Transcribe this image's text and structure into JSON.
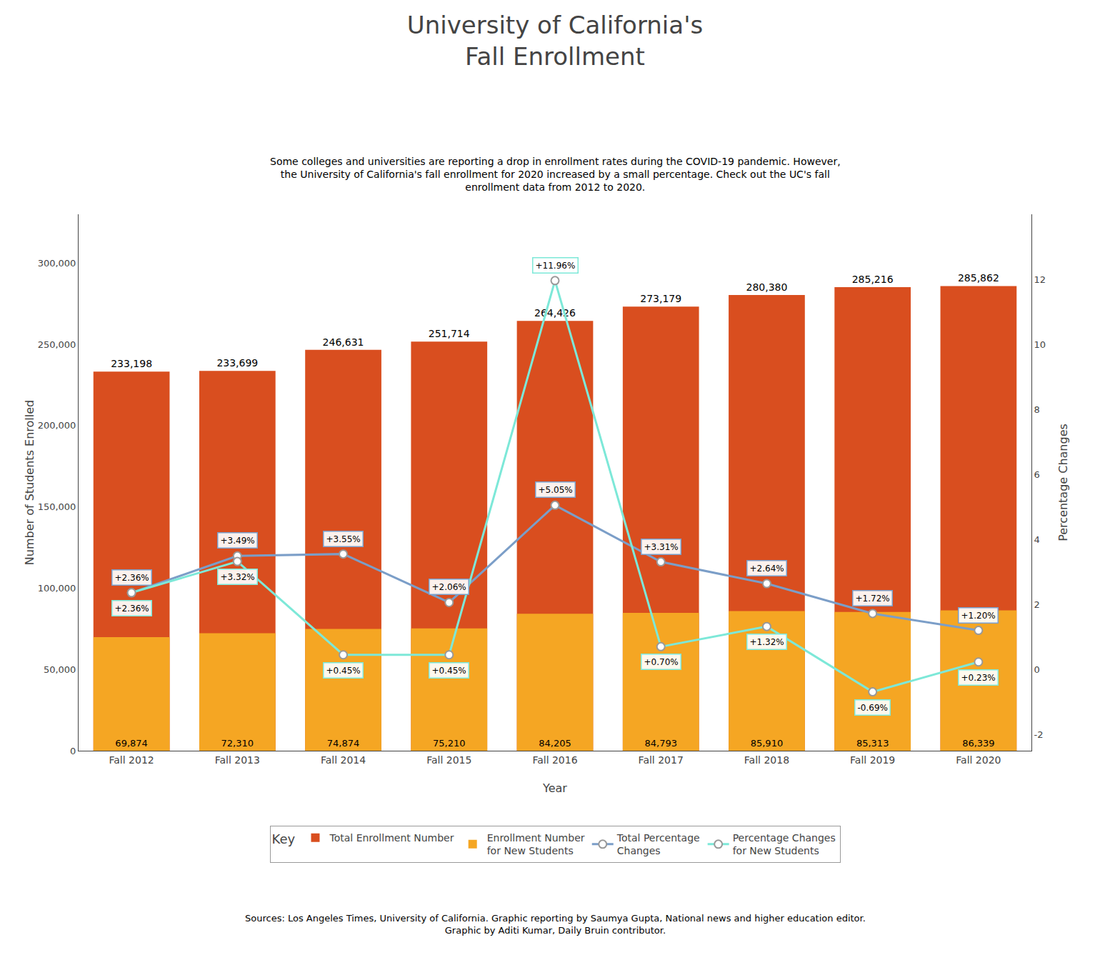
{
  "chart_data": {
    "type": "bar",
    "title": "University of California's\nFall Enrollment",
    "subtitle": "Some colleges and universities are reporting a drop in enrollment rates during the COVID-19 pandemic. However,\nthe University of California's fall enrollment for 2020 increased by a small percentage. Check out the UC's fall\nenrollment data from 2012 to 2020.",
    "source": "Sources: Los Angeles Times, University of California. Graphic reporting by Saumya Gupta, National news and higher education editor.\nGraphic by Aditi Kumar, Daily Bruin contributor.",
    "legend_title": "Key",
    "xlabel": "Year",
    "ylabel": "Number of Students Enrolled",
    "y2label": "Percentage Changes",
    "categories": [
      "Fall 2012",
      "Fall 2013",
      "Fall 2014",
      "Fall 2015",
      "Fall 2016",
      "Fall 2017",
      "Fall 2018",
      "Fall 2019",
      "Fall 2020"
    ],
    "series": [
      {
        "name": "Total Enrollment Number",
        "type": "bar",
        "color": "#D94E1F",
        "values": [
          233198,
          233699,
          246631,
          251714,
          264426,
          273179,
          280380,
          285216,
          285862
        ],
        "value_labels": [
          "233,198",
          "233,699",
          "246,631",
          "251,714",
          "264,426",
          "273,179",
          "280,380",
          "285,216",
          "285,862"
        ]
      },
      {
        "name": "Enrollment Number\nfor New Students",
        "type": "bar",
        "color": "#F5A623",
        "values": [
          69874,
          72310,
          74874,
          75210,
          84205,
          84793,
          85910,
          85313,
          86339
        ],
        "value_labels": [
          "69,874",
          "72,310",
          "74,874",
          "75,210",
          "84,205",
          "84,793",
          "85,910",
          "85,313",
          "86,339"
        ]
      },
      {
        "name": "Total Percentage\nChanges",
        "type": "line",
        "axis": "y2",
        "color": "#7B9EC8",
        "marker": "circle",
        "values": [
          2.36,
          3.49,
          3.55,
          2.06,
          5.05,
          3.31,
          2.64,
          1.72,
          1.2
        ],
        "value_labels": [
          "+2.36%",
          "+3.49%",
          "+3.55%",
          "+2.06%",
          "+5.05%",
          "+3.31%",
          "+2.64%",
          "+1.72%",
          "+1.20%"
        ]
      },
      {
        "name": "Percentage Changes\nfor New Students",
        "type": "line",
        "axis": "y2",
        "color": "#7DE8D8",
        "marker": "circle",
        "values": [
          2.36,
          3.32,
          0.45,
          0.45,
          11.96,
          0.7,
          1.32,
          -0.69,
          0.23
        ],
        "value_labels": [
          "+2.36%",
          "+3.32%",
          "+0.45%",
          "+0.45%",
          "+11.96%",
          "+0.70%",
          "+1.32%",
          "-0.69%",
          "+0.23%"
        ]
      }
    ],
    "ylim": [
      0,
      330000
    ],
    "yticks": [
      0,
      {
        "value": 50000,
        "label": "50,000"
      },
      {
        "value": 100000,
        "label": "100,000"
      },
      {
        "value": 150000,
        "label": "150,000"
      },
      {
        "value": 200000,
        "label": "200,000"
      },
      {
        "value": 250000,
        "label": "250,000"
      },
      {
        "value": 300000,
        "label": "300,000"
      }
    ],
    "y2lim": [
      -2.5,
      14
    ],
    "y2ticks": [
      -2,
      0,
      2,
      4,
      6,
      8,
      10,
      12
    ],
    "grid": false,
    "legend": "bottom",
    "stacked": false,
    "data_labels": true
  }
}
